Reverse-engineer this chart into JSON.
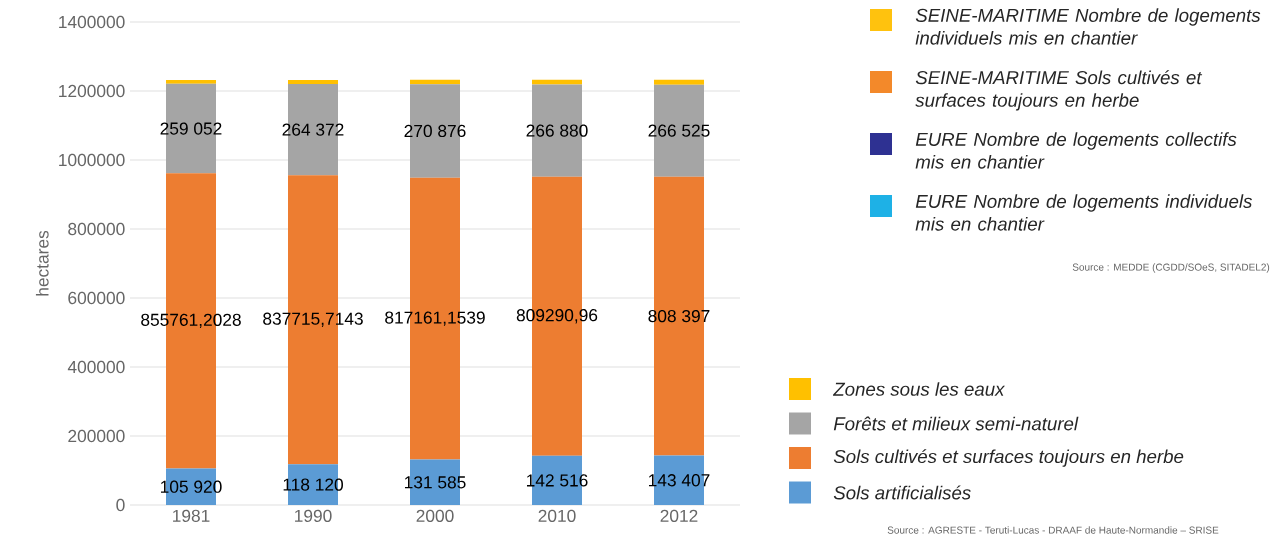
{
  "chart_data": {
    "type": "bar",
    "stacked": true,
    "ylabel": "hectares",
    "categories": [
      "1981",
      "1990",
      "2000",
      "2010",
      "2012"
    ],
    "series": [
      {
        "name": "Sols artificialisés",
        "color": "#5b9bd5",
        "values": [
          105920,
          118120,
          131585,
          142516,
          143407
        ],
        "value_labels": [
          "105 920",
          "118 120",
          "131 585",
          "142 516",
          "143 407"
        ]
      },
      {
        "name": "Sols cultivés et surfaces toujours en herbe",
        "color": "#ed7d31",
        "values": [
          855761.2028,
          837715.7143,
          817161.1539,
          809290.96,
          808397
        ],
        "value_labels": [
          "855761,2028",
          "837715,7143",
          "817161,1539",
          "809290,96",
          "808 397"
        ]
      },
      {
        "name": "Forêts et milieux semi-naturel",
        "color": "#a5a5a5",
        "values": [
          259052,
          264372,
          270876,
          266880,
          266525
        ],
        "value_labels": [
          "259 052",
          "264 372",
          "270 876",
          "266 880",
          "266 525"
        ]
      },
      {
        "name": "Zones sous les eaux",
        "color": "#ffc000",
        "values": [
          11000,
          12000,
          13000,
          14000,
          14000
        ]
      },
      {
        "name": "SEINE-MARITIME Nombre de logements individuels mis en chantier",
        "color": "#ffc20e",
        "values": [
          null,
          null,
          null,
          null,
          null
        ]
      },
      {
        "name": "SEINE-MARITIME Sols cultivés et surfaces toujours en herbe",
        "color": "#f3892a",
        "values": [
          null,
          null,
          null,
          null,
          null
        ]
      },
      {
        "name": "EURE Nombre de logements collectifs mis en chantier",
        "color": "#2e3192",
        "values": [
          null,
          null,
          null,
          null,
          null
        ]
      },
      {
        "name": "EURE Nombre de logements individuels mis en chantier",
        "color": "#1eb1e6",
        "values": [
          null,
          null,
          null,
          null,
          null
        ]
      }
    ],
    "ylim": [
      0,
      1400000
    ],
    "yticks": [
      0,
      200000,
      400000,
      600000,
      800000,
      1000000,
      1200000,
      1400000
    ],
    "grid": "y",
    "legend": "right",
    "annotations": [
      "Source : MEDDE (CGDD/SOeS, SITADEL2)",
      "Source : AGRESTE - Teruti-Lucas - DRAAF de Haute-Normandie – SRISE"
    ]
  }
}
